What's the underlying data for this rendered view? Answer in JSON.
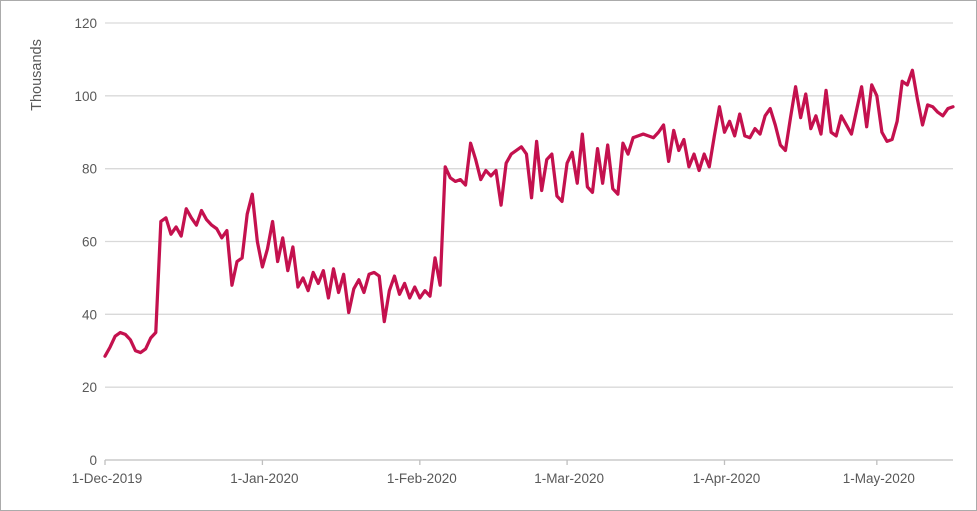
{
  "chart_data": {
    "type": "line",
    "title": "",
    "xlabel": "",
    "ylabel": "Thousands",
    "ylim": [
      0,
      120
    ],
    "y_ticks": [
      0,
      20,
      40,
      60,
      80,
      100,
      120
    ],
    "x_ticks": [
      {
        "label": "1-Dec-2019",
        "day": 0
      },
      {
        "label": "1-Jan-2020",
        "day": 31
      },
      {
        "label": "1-Feb-2020",
        "day": 62
      },
      {
        "label": "1-Mar-2020",
        "day": 91
      },
      {
        "label": "1-Apr-2020",
        "day": 122
      },
      {
        "label": "1-May-2020",
        "day": 152
      }
    ],
    "grid": "horizontal",
    "legend": "none",
    "series": [
      {
        "name": "daily-values-thousands",
        "start_date": "1-Dec-2019",
        "frequency": "daily",
        "color": "#C4114E",
        "values": [
          28.5,
          31,
          34,
          35,
          34.5,
          33,
          30,
          29.5,
          30.5,
          33.5,
          35,
          65.5,
          66.5,
          62,
          64,
          61.5,
          69,
          66.5,
          64.5,
          68.5,
          66,
          64.5,
          63.5,
          61,
          63,
          48,
          54.5,
          55.5,
          67.5,
          73,
          60,
          53,
          58,
          65.5,
          54.5,
          61,
          52,
          58.5,
          47.5,
          50,
          46.5,
          51.5,
          48.5,
          52,
          44.5,
          52.5,
          46,
          51,
          40.5,
          47,
          49.5,
          46,
          51,
          51.5,
          50.5,
          38,
          46.5,
          50.5,
          45.5,
          48.5,
          44.5,
          47.5,
          44.5,
          46.5,
          45,
          55.5,
          48,
          80.5,
          77.5,
          76.5,
          77,
          75.5,
          87,
          82.5,
          77,
          79.5,
          78,
          79.5,
          70,
          81.5,
          84,
          85,
          86,
          84,
          72,
          87.5,
          74,
          82.5,
          84,
          72.5,
          71,
          81.5,
          84.5,
          76,
          89.5,
          75,
          73.5,
          85.5,
          76,
          86.5,
          74.5,
          73,
          87,
          84,
          88.5,
          89,
          89.5,
          89,
          88.5,
          90,
          92,
          82,
          90.5,
          85,
          88,
          80.5,
          84,
          79.5,
          84,
          80.5,
          89,
          97,
          90,
          93,
          89,
          95,
          89,
          88.5,
          91,
          89.5,
          94.5,
          96.5,
          92,
          86.5,
          85,
          94,
          102.5,
          94,
          100.5,
          91,
          94.5,
          89.5,
          101.5,
          90,
          89,
          94.5,
          92,
          89.5,
          96,
          102.5,
          91.5,
          103,
          100,
          90,
          87.5,
          88,
          93,
          104,
          103,
          107,
          99,
          92,
          97.5,
          97,
          95.5,
          94.5,
          96.5,
          97
        ]
      }
    ]
  },
  "colors": {
    "line": "#C4114E",
    "gridline": "#D9D9D9",
    "axis_line": "#BFBFBF",
    "tick_label": "#595959",
    "border": "#ABABAB",
    "background": "#FFFFFF"
  }
}
